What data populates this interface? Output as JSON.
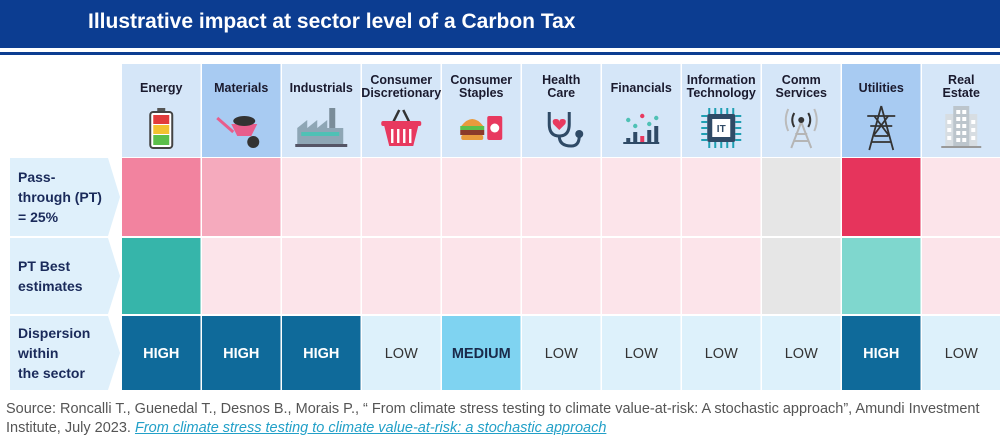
{
  "header": {
    "title": "Illustrative impact at sector level of a Carbon Tax"
  },
  "chart_data": {
    "type": "heatmap",
    "title": "Illustrative impact at sector level of a Carbon Tax",
    "sectors": [
      {
        "label": "Energy",
        "icon": "battery-icon"
      },
      {
        "label": "Materials",
        "icon": "wheelbarrow-icon"
      },
      {
        "label": "Industrials",
        "icon": "factory-icon"
      },
      {
        "label": "Consumer Discretionary",
        "icon": "shopping-basket-icon"
      },
      {
        "label": "Consumer Staples",
        "icon": "burger-icon"
      },
      {
        "label": "Health Care",
        "icon": "stethoscope-icon"
      },
      {
        "label": "Financials",
        "icon": "bar-chart-icon"
      },
      {
        "label": "Information Technology",
        "icon": "chip-icon"
      },
      {
        "label": "Comm Services",
        "icon": "antenna-icon"
      },
      {
        "label": "Utilities",
        "icon": "pylon-icon"
      },
      {
        "label": "Real Estate",
        "icon": "building-icon"
      }
    ],
    "rows": [
      {
        "label": "Pass-through (PT) = 25%",
        "cells": [
          {
            "color": "#f2839f"
          },
          {
            "color": "#f5aabd"
          },
          {
            "color": "#fce4ea"
          },
          {
            "color": "#fce4ea"
          },
          {
            "color": "#fce4ea"
          },
          {
            "color": "#fce4ea"
          },
          {
            "color": "#fce4ea"
          },
          {
            "color": "#fce4ea"
          },
          {
            "color": "#e6e6e6"
          },
          {
            "color": "#e6345c"
          },
          {
            "color": "#fce4ea"
          }
        ]
      },
      {
        "label": "PT Best estimates",
        "cells": [
          {
            "color": "#36b5aa"
          },
          {
            "color": "#fce4ea"
          },
          {
            "color": "#fce4ea"
          },
          {
            "color": "#fce4ea"
          },
          {
            "color": "#fce4ea"
          },
          {
            "color": "#fce4ea"
          },
          {
            "color": "#fce4ea"
          },
          {
            "color": "#fce4ea"
          },
          {
            "color": "#e6e6e6"
          },
          {
            "color": "#7fd7ce"
          },
          {
            "color": "#fce4ea"
          }
        ]
      },
      {
        "label": "Dispersion within the sector",
        "cells": [
          {
            "text": "HIGH",
            "color": "#0f6a9a",
            "text_color": "#ffffff"
          },
          {
            "text": "HIGH",
            "color": "#0f6a9a",
            "text_color": "#ffffff"
          },
          {
            "text": "HIGH",
            "color": "#0f6a9a",
            "text_color": "#ffffff"
          },
          {
            "text": "LOW",
            "color": "#ddf1fb",
            "text_color": "#333333"
          },
          {
            "text": "MEDIUM",
            "color": "#7fd3f1",
            "text_color": "#1a2a4a"
          },
          {
            "text": "LOW",
            "color": "#ddf1fb",
            "text_color": "#333333"
          },
          {
            "text": "LOW",
            "color": "#ddf1fb",
            "text_color": "#333333"
          },
          {
            "text": "LOW",
            "color": "#ddf1fb",
            "text_color": "#333333"
          },
          {
            "text": "LOW",
            "color": "#ddf1fb",
            "text_color": "#333333"
          },
          {
            "text": "HIGH",
            "color": "#0f6a9a",
            "text_color": "#ffffff"
          },
          {
            "text": "LOW",
            "color": "#ddf1fb",
            "text_color": "#333333"
          }
        ]
      }
    ]
  },
  "source": {
    "text": "Source: Roncalli T., Guenedal T., Desnos B., Morais P., “ From climate stress testing to climate value-at-risk: A stochastic approach”, Amundi Investment Institute, July 2023. ",
    "link_text": "From climate stress testing to climate value-at-risk: a stochastic approach"
  },
  "colors": {
    "brand": "#0c3d91",
    "header_blue": "#d5e6f8",
    "header_highlight": "#a8cbf2",
    "row_label_bg": "#dff0fb",
    "link": "#22a0c8"
  }
}
